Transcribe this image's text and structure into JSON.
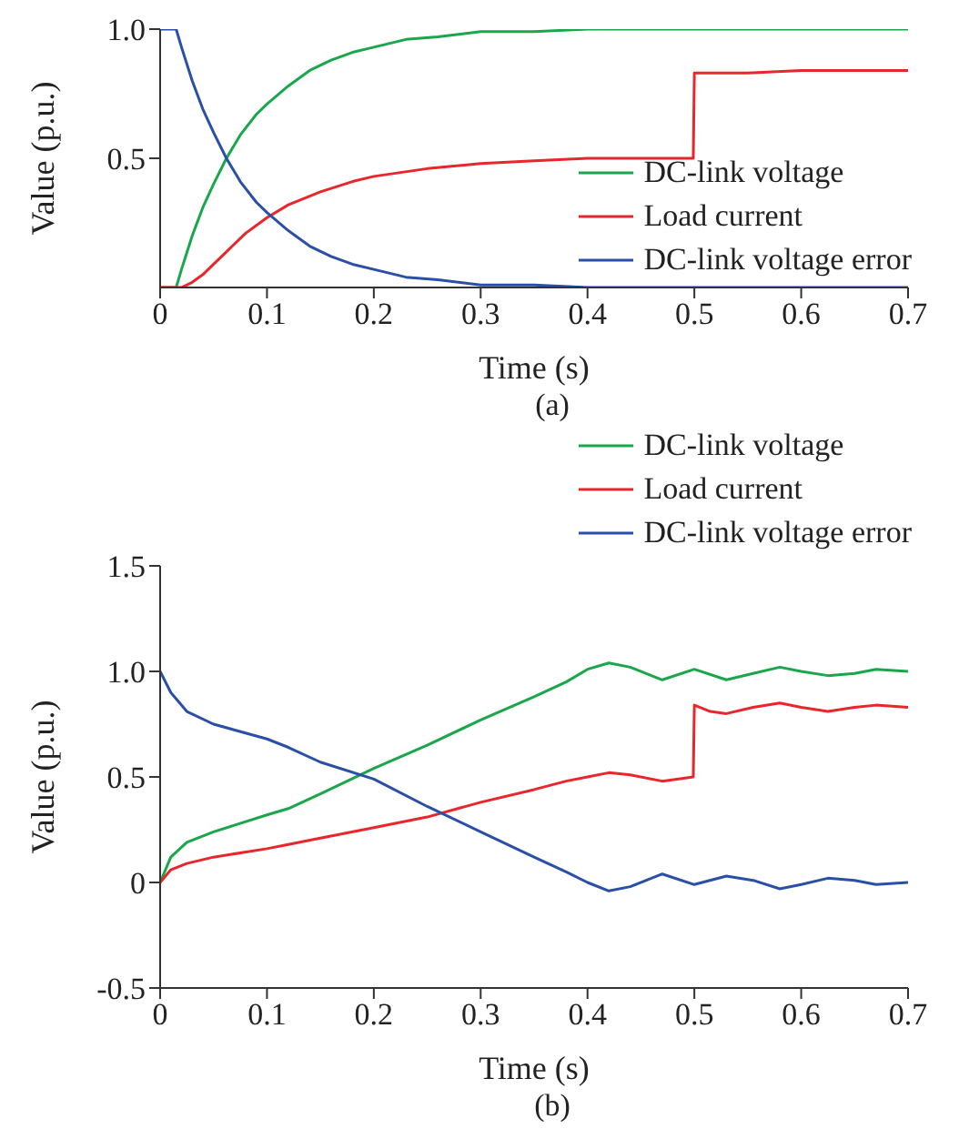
{
  "chart_data": [
    {
      "type": "line",
      "xlabel": "Time (s)",
      "ylabel": "Value (p.u.)",
      "annotations": [
        "(a)"
      ],
      "xlim": [
        0,
        0.7
      ],
      "xticks": [
        0,
        0.1,
        0.2,
        0.3,
        0.4,
        0.5,
        0.6,
        0.7
      ],
      "ylim": [
        0,
        1
      ],
      "yticks": [
        0.5,
        {
          "value": 1,
          "label": "1.0"
        }
      ],
      "legend": "bottom right",
      "marker": "none",
      "line_style": "solid",
      "grid": false,
      "series": [
        {
          "name": "DC-link voltage",
          "color": "#1aa64a",
          "x": [
            0,
            0.015,
            0.02,
            0.03,
            0.04,
            0.05,
            0.062,
            0.075,
            0.09,
            0.1,
            0.12,
            0.14,
            0.16,
            0.18,
            0.2,
            0.23,
            0.26,
            0.3,
            0.35,
            0.4,
            0.5,
            0.6,
            0.7
          ],
          "values": [
            0,
            0,
            0.07,
            0.2,
            0.31,
            0.4,
            0.5,
            0.59,
            0.67,
            0.71,
            0.78,
            0.84,
            0.88,
            0.91,
            0.93,
            0.96,
            0.97,
            0.99,
            0.99,
            1,
            1,
            1,
            1
          ]
        },
        {
          "name": "Load current",
          "color": "#e8262b",
          "x": [
            0,
            0.02,
            0.03,
            0.04,
            0.05,
            0.06,
            0.08,
            0.1,
            0.12,
            0.15,
            0.18,
            0.2,
            0.25,
            0.3,
            0.35,
            0.4,
            0.45,
            0.499,
            0.5,
            0.55,
            0.6,
            0.7
          ],
          "values": [
            0,
            0,
            0.02,
            0.05,
            0.09,
            0.13,
            0.21,
            0.27,
            0.32,
            0.37,
            0.41,
            0.43,
            0.46,
            0.48,
            0.49,
            0.5,
            0.5,
            0.5,
            0.83,
            0.83,
            0.84,
            0.84
          ]
        },
        {
          "name": "DC-link voltage error",
          "color": "#2a4fa8",
          "x": [
            0,
            0.015,
            0.02,
            0.03,
            0.04,
            0.05,
            0.062,
            0.075,
            0.09,
            0.1,
            0.12,
            0.14,
            0.16,
            0.18,
            0.2,
            0.23,
            0.26,
            0.3,
            0.35,
            0.4,
            0.5,
            0.6,
            0.7
          ],
          "values": [
            1,
            1,
            0.93,
            0.8,
            0.69,
            0.6,
            0.5,
            0.41,
            0.33,
            0.29,
            0.22,
            0.16,
            0.12,
            0.09,
            0.07,
            0.04,
            0.03,
            0.01,
            0.01,
            0,
            0,
            0,
            0
          ]
        }
      ]
    },
    {
      "type": "line",
      "xlabel": "Time (s)",
      "ylabel": "Value (p.u.)",
      "annotations": [
        "(b)"
      ],
      "xlim": [
        0,
        0.7
      ],
      "xticks": [
        0,
        0.1,
        0.2,
        0.3,
        0.4,
        0.5,
        0.6,
        0.7
      ],
      "ylim": [
        -0.5,
        1.5
      ],
      "yticks": [
        -0.5,
        0,
        0.5,
        {
          "value": 1,
          "label": "1.0"
        },
        1.5
      ],
      "legend": "top right",
      "marker": "none",
      "line_style": "solid",
      "grid": false,
      "series": [
        {
          "name": "DC-link voltage",
          "color": "#1aa64a",
          "x": [
            0,
            0.01,
            0.025,
            0.05,
            0.1,
            0.12,
            0.15,
            0.2,
            0.25,
            0.3,
            0.35,
            0.38,
            0.4,
            0.42,
            0.44,
            0.47,
            0.5,
            0.53,
            0.555,
            0.58,
            0.6,
            0.625,
            0.65,
            0.67,
            0.7
          ],
          "values": [
            0,
            0.12,
            0.19,
            0.24,
            0.32,
            0.35,
            0.42,
            0.54,
            0.65,
            0.77,
            0.88,
            0.95,
            1.01,
            1.04,
            1.02,
            0.96,
            1.01,
            0.96,
            0.99,
            1.02,
            1.0,
            0.98,
            0.99,
            1.01,
            1.0
          ]
        },
        {
          "name": "Load current",
          "color": "#e8262b",
          "x": [
            0,
            0.01,
            0.025,
            0.05,
            0.1,
            0.12,
            0.15,
            0.2,
            0.25,
            0.3,
            0.35,
            0.38,
            0.4,
            0.42,
            0.44,
            0.47,
            0.499,
            0.5,
            0.515,
            0.53,
            0.555,
            0.58,
            0.6,
            0.625,
            0.65,
            0.67,
            0.7
          ],
          "values": [
            0,
            0.06,
            0.09,
            0.12,
            0.16,
            0.18,
            0.21,
            0.26,
            0.31,
            0.38,
            0.44,
            0.48,
            0.5,
            0.52,
            0.51,
            0.48,
            0.5,
            0.84,
            0.81,
            0.8,
            0.83,
            0.85,
            0.83,
            0.81,
            0.83,
            0.84,
            0.83
          ]
        },
        {
          "name": "DC-link voltage error",
          "color": "#2a4fa8",
          "x": [
            0,
            0.01,
            0.025,
            0.05,
            0.1,
            0.12,
            0.15,
            0.2,
            0.25,
            0.3,
            0.35,
            0.38,
            0.4,
            0.42,
            0.44,
            0.47,
            0.5,
            0.53,
            0.555,
            0.58,
            0.6,
            0.625,
            0.65,
            0.67,
            0.7
          ],
          "values": [
            1,
            0.9,
            0.81,
            0.75,
            0.68,
            0.64,
            0.57,
            0.49,
            0.36,
            0.24,
            0.12,
            0.05,
            0.0,
            -0.04,
            -0.02,
            0.04,
            -0.01,
            0.03,
            0.01,
            -0.03,
            -0.01,
            0.02,
            0.01,
            -0.01,
            0
          ]
        }
      ]
    }
  ]
}
